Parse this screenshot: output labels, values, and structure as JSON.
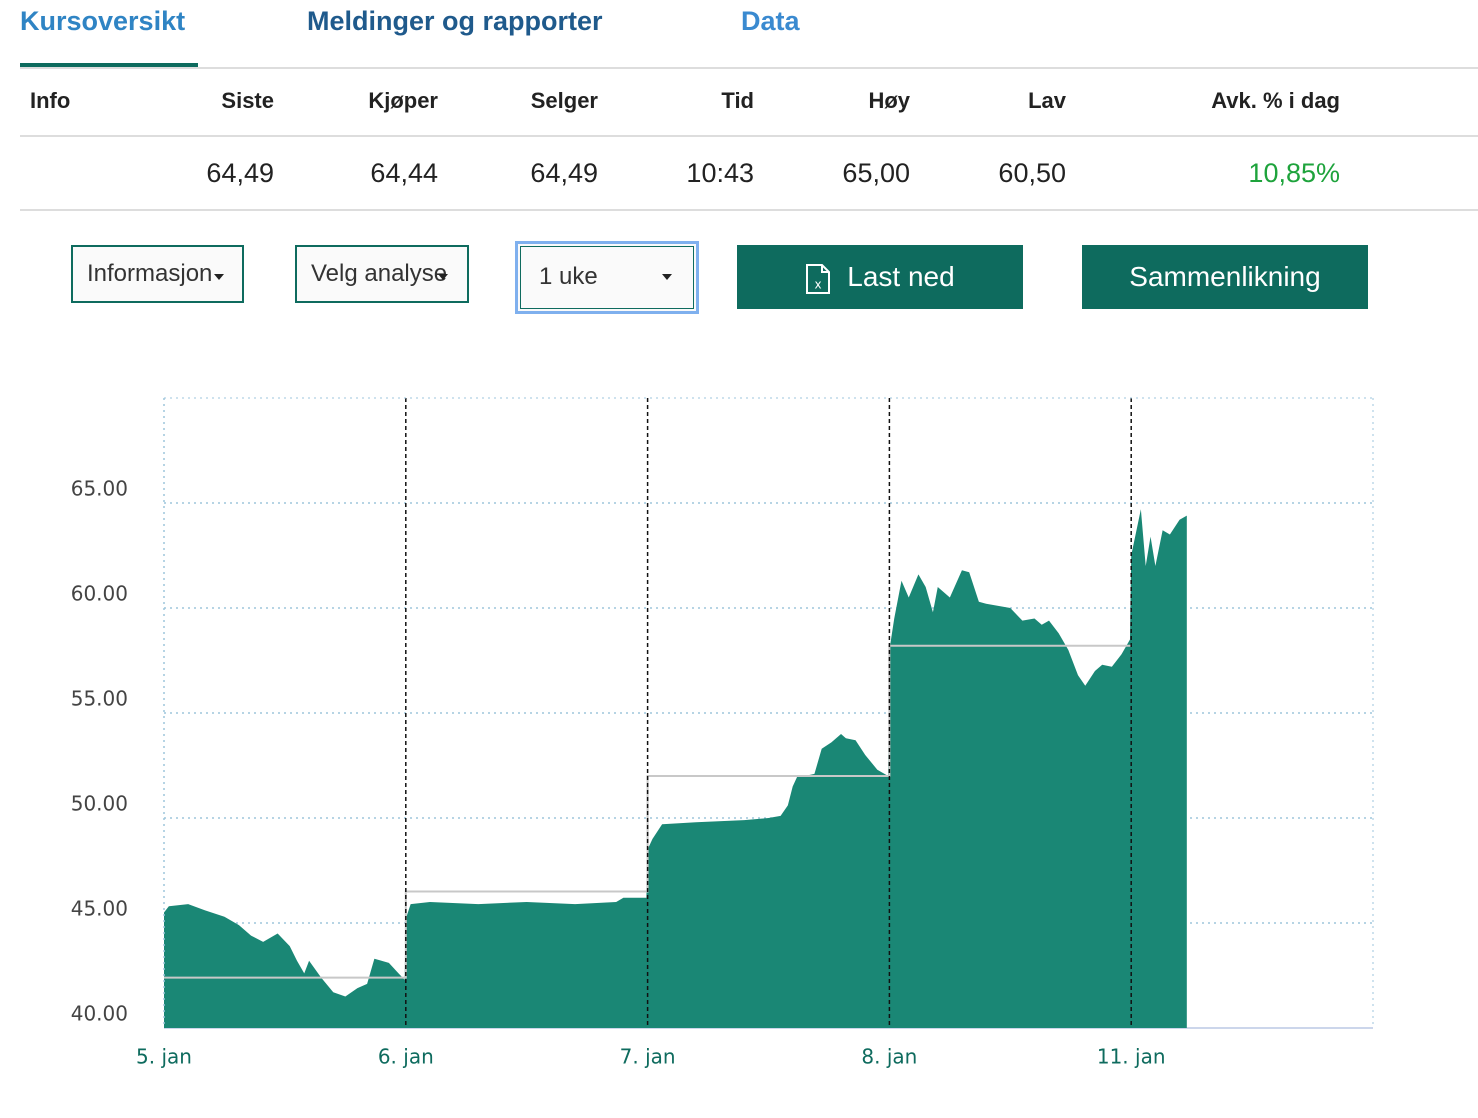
{
  "tabs": [
    "Kursoversikt",
    "Meldinger og rapporter",
    "Data"
  ],
  "table": {
    "headers": [
      "Info",
      "Siste",
      "Kjøper",
      "Selger",
      "Tid",
      "Høy",
      "Lav",
      "Avk. % i dag"
    ],
    "values": [
      "64,49",
      "64,44",
      "64,49",
      "10:43",
      "65,00",
      "60,50",
      "10,85%"
    ]
  },
  "controls": {
    "selects": [
      "Informasjon",
      "Velg analyse",
      "1 uke"
    ],
    "buttons": [
      "Last ned",
      "Sammenlikning"
    ]
  },
  "chart_data": {
    "type": "area",
    "xlim": [
      0,
      5
    ],
    "xticks": [
      {
        "value": 0,
        "label": "5. jan"
      },
      {
        "value": 1,
        "label": "6. jan"
      },
      {
        "value": 2,
        "label": "7. jan"
      },
      {
        "value": 3,
        "label": "8. jan"
      },
      {
        "value": 4,
        "label": "11. jan"
      }
    ],
    "ylim": [
      40,
      70
    ],
    "yticks": [
      {
        "value": 40,
        "label": "40.00"
      },
      {
        "value": 45,
        "label": "45.00"
      },
      {
        "value": 50,
        "label": "50.00"
      },
      {
        "value": 55,
        "label": "55.00"
      },
      {
        "value": 60,
        "label": "60.00"
      },
      {
        "value": 65,
        "label": "65.00"
      }
    ],
    "grid": true,
    "series": [
      {
        "type": "area",
        "color": "#1a8775",
        "x": [
          0,
          0.02,
          0.1,
          0.17,
          0.25,
          0.31,
          0.36,
          0.41,
          0.47,
          0.52,
          0.55,
          0.58,
          0.6,
          0.65,
          0.7,
          0.75,
          0.8,
          0.84,
          0.87,
          0.93,
          0.97,
          0.995,
          1.0,
          1.02,
          1.1,
          1.3,
          1.5,
          1.7,
          1.87,
          1.9,
          1.995,
          2.0,
          2.02,
          2.06,
          2.2,
          2.4,
          2.5,
          2.55,
          2.58,
          2.6,
          2.62,
          2.65,
          2.69,
          2.72,
          2.76,
          2.8,
          2.82,
          2.86,
          2.9,
          2.95,
          2.995,
          3.0,
          3.02,
          3.05,
          3.08,
          3.12,
          3.15,
          3.18,
          3.2,
          3.25,
          3.3,
          3.33,
          3.37,
          3.4,
          3.45,
          3.5,
          3.55,
          3.6,
          3.63,
          3.66,
          3.7,
          3.74,
          3.78,
          3.81,
          3.85,
          3.88,
          3.92,
          3.96,
          3.995,
          4.0,
          4.02,
          4.04,
          4.06,
          4.08,
          4.1,
          4.13,
          4.16,
          4.2,
          4.23
        ],
        "values": [
          45.5,
          45.8,
          45.9,
          45.6,
          45.3,
          44.9,
          44.4,
          44.1,
          44.5,
          43.9,
          43.2,
          42.6,
          43.2,
          42.4,
          41.7,
          41.5,
          41.9,
          42.1,
          43.3,
          43.1,
          42.6,
          42.3,
          45.2,
          45.9,
          46.0,
          45.9,
          46.0,
          45.9,
          46.0,
          46.2,
          46.2,
          48.5,
          49.0,
          49.7,
          49.8,
          49.9,
          50.0,
          50.1,
          50.6,
          51.5,
          52.0,
          52.0,
          52.1,
          53.3,
          53.6,
          54.0,
          53.8,
          53.7,
          53.0,
          52.3,
          52.0,
          58.0,
          59.5,
          61.3,
          60.5,
          61.6,
          61.0,
          59.8,
          61.0,
          60.5,
          61.8,
          61.7,
          60.3,
          60.2,
          60.1,
          60.0,
          59.4,
          59.5,
          59.2,
          59.4,
          58.8,
          58.0,
          56.8,
          56.3,
          57.0,
          57.3,
          57.2,
          57.8,
          58.5,
          62.5,
          63.6,
          64.7,
          62.0,
          63.4,
          62.0,
          63.7,
          63.5,
          64.2,
          64.4
        ]
      },
      {
        "type": "line",
        "color": "#c8c8c8",
        "x": [
          0,
          1,
          1,
          2,
          2,
          3,
          3,
          4
        ],
        "values": [
          42.4,
          42.4,
          46.5,
          46.5,
          52.0,
          52.0,
          58.2,
          58.2
        ]
      }
    ]
  }
}
